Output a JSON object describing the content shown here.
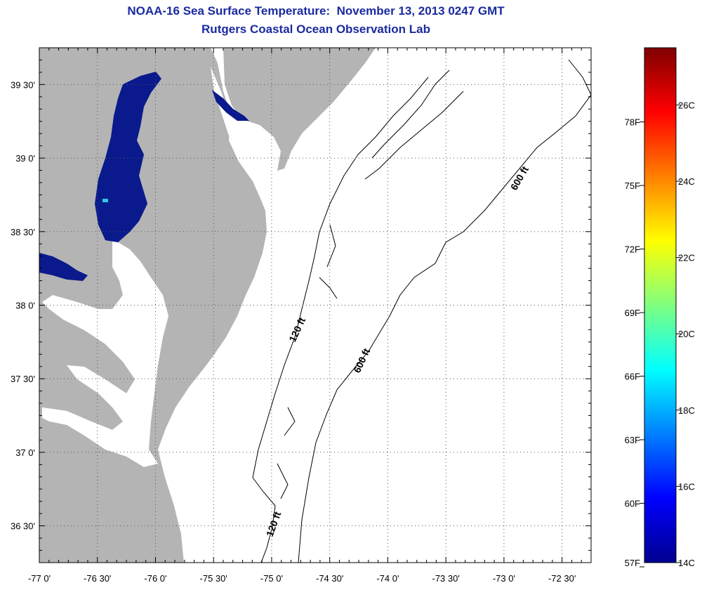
{
  "header": {
    "title": "NOAA-16 Sea Surface Temperature:  November 13, 2013 0247 GMT",
    "subtitle": "Rutgers Coastal Ocean Observation Lab"
  },
  "map": {
    "lon_range": [
      -77.0,
      -72.25
    ],
    "lat_range": [
      36.25,
      39.75
    ],
    "lon_ticks": [
      {
        "value": -77.0,
        "label": "-77 0'"
      },
      {
        "value": -76.5,
        "label": "-76 30'"
      },
      {
        "value": -76.0,
        "label": "-76 0'"
      },
      {
        "value": -75.5,
        "label": "-75 30'"
      },
      {
        "value": -75.0,
        "label": "-75 0'"
      },
      {
        "value": -74.5,
        "label": "-74 30'"
      },
      {
        "value": -74.0,
        "label": "-74 0'"
      },
      {
        "value": -73.5,
        "label": "-73 30'"
      },
      {
        "value": -73.0,
        "label": "-73 0'"
      },
      {
        "value": -72.5,
        "label": "-72 30'"
      }
    ],
    "lat_ticks": [
      {
        "value": 39.5,
        "label": "39 30'"
      },
      {
        "value": 39.0,
        "label": "39 0'"
      },
      {
        "value": 38.5,
        "label": "38 30'"
      },
      {
        "value": 38.0,
        "label": "38 0'"
      },
      {
        "value": 37.5,
        "label": "37 30'"
      },
      {
        "value": 37.0,
        "label": "37 0'"
      },
      {
        "value": 36.5,
        "label": "36 30'"
      }
    ],
    "grid": "dotted",
    "land_color": "#b4b4b4",
    "cold_water_color": "#0a1a8c",
    "contours": [
      {
        "label": "120 ft"
      },
      {
        "label": "120 ft"
      },
      {
        "label": "600 ft"
      },
      {
        "label": "600 ft"
      }
    ]
  },
  "colorbar": {
    "min_c": 14,
    "max_c": 27.5,
    "fahrenheit_labels": [
      "78F",
      "75F",
      "72F",
      "69F",
      "66F",
      "63F",
      "60F",
      "57F"
    ],
    "celsius_labels": [
      "26C",
      "24C",
      "22C",
      "20C",
      "18C",
      "16C",
      "14C"
    ],
    "colormap": "jet"
  }
}
